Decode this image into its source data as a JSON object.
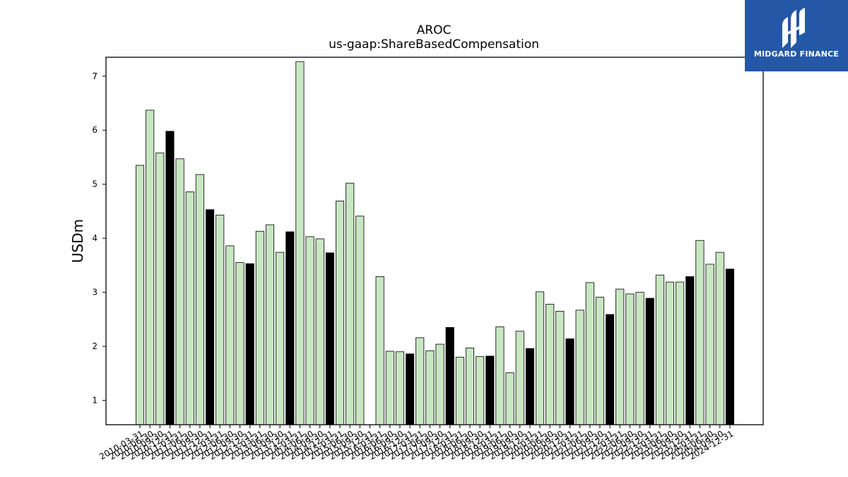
{
  "brand": {
    "name": "MIDGARD FINANCE"
  },
  "colors": {
    "bar_default": "#c8e6c2",
    "bar_q4": "#000000",
    "bar_edge": "#000000",
    "brand": "#2557a7"
  },
  "chart_data": {
    "type": "bar",
    "title": "AROC",
    "subtitle": "us-gaap:ShareBasedCompensation",
    "xlabel": "",
    "ylabel": "USDm",
    "ylim": [
      0.55,
      7.35
    ],
    "yticks": [
      1,
      2,
      3,
      4,
      5,
      6,
      7
    ],
    "grid": false,
    "legend": "none",
    "series": [
      {
        "categories": [
          "2010-03-31",
          "2010-06-30",
          "2010-09-30",
          "2010-12-31",
          "2011-03-31",
          "2011-06-30",
          "2011-09-30",
          "2011-12-31",
          "2012-03-31",
          "2012-06-30",
          "2012-09-30",
          "2012-12-31",
          "2013-03-31",
          "2013-06-30",
          "2013-09-30",
          "2013-12-31",
          "2014-03-31",
          "2014-06-30",
          "2014-09-30",
          "2014-12-31",
          "2015-03-31",
          "2015-06-30",
          "2015-09-30",
          "2015-12-31",
          "2016-03-31",
          "2016-06-30",
          "2016-09-30",
          "2016-12-31",
          "2017-03-31",
          "2017-06-30",
          "2017-09-30",
          "2017-12-31",
          "2018-03-31",
          "2018-06-30",
          "2018-09-30",
          "2018-12-31",
          "2019-03-31",
          "2019-06-30",
          "2019-09-30",
          "2019-12-31",
          "2020-03-31",
          "2020-06-30",
          "2020-09-30",
          "2020-12-31",
          "2021-03-31",
          "2021-06-30",
          "2021-09-30",
          "2021-12-31",
          "2022-03-31",
          "2022-06-30",
          "2022-09-30",
          "2022-12-31",
          "2023-03-31",
          "2023-06-30",
          "2023-09-30",
          "2023-12-31",
          "2024-03-31",
          "2024-06-30",
          "2024-09-30",
          "2024-12-31"
        ],
        "values": [
          5.35,
          6.37,
          5.58,
          5.98,
          5.47,
          4.86,
          5.18,
          4.53,
          4.43,
          3.86,
          3.55,
          3.53,
          4.13,
          4.25,
          3.74,
          4.12,
          7.27,
          4.03,
          3.99,
          3.73,
          4.69,
          5.02,
          4.41,
          null,
          3.29,
          1.91,
          1.9,
          1.86,
          2.16,
          1.92,
          2.04,
          2.35,
          1.8,
          1.97,
          1.81,
          1.82,
          2.36,
          1.51,
          2.28,
          1.96,
          3.01,
          2.78,
          2.65,
          2.14,
          2.67,
          3.18,
          2.91,
          2.59,
          3.06,
          2.97,
          3.0,
          2.89,
          3.32,
          3.19,
          3.19,
          3.29,
          3.96,
          3.52,
          3.74,
          3.43
        ],
        "highlight": [
          false,
          false,
          false,
          true,
          false,
          false,
          false,
          true,
          false,
          false,
          false,
          true,
          false,
          false,
          false,
          true,
          false,
          false,
          false,
          true,
          false,
          false,
          false,
          true,
          false,
          false,
          false,
          true,
          false,
          false,
          false,
          true,
          false,
          false,
          false,
          true,
          false,
          false,
          false,
          true,
          false,
          false,
          false,
          true,
          false,
          false,
          false,
          true,
          false,
          false,
          false,
          true,
          false,
          false,
          false,
          true,
          false,
          false,
          false,
          true
        ]
      }
    ]
  }
}
